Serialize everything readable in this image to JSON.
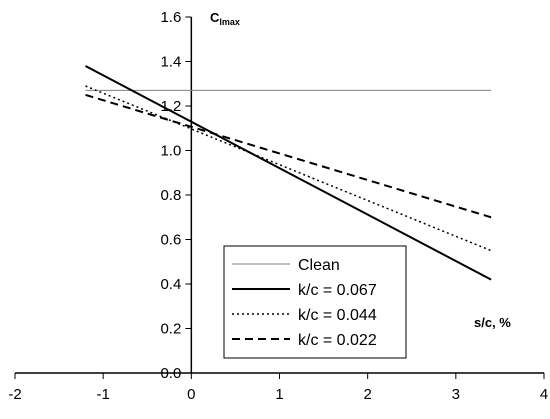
{
  "chart_data": {
    "type": "line",
    "title": "",
    "ylabel": "C",
    "ylabel_sub": "lmax",
    "xlabel": "s/c, %",
    "xlim": [
      -2,
      4
    ],
    "ylim": [
      0.0,
      1.6
    ],
    "xticks": [
      "-2",
      "-1",
      "0",
      "1",
      "2",
      "3",
      "4"
    ],
    "yticks": [
      "0.0",
      "0.2",
      "0.4",
      "0.6",
      "0.8",
      "1.0",
      "1.2",
      "1.4",
      "1.6"
    ],
    "grid": false,
    "legend_position": "bottom-center",
    "series": [
      {
        "name": "Clean",
        "style": "thin",
        "color": "#808080",
        "x": [
          -1.2,
          3.4
        ],
        "y": [
          1.27,
          1.27
        ]
      },
      {
        "name": "k/c = 0.067",
        "style": "solid",
        "color": "#000000",
        "x": [
          -1.2,
          3.4
        ],
        "y": [
          1.38,
          0.42
        ]
      },
      {
        "name": "k/c = 0.044",
        "style": "dotted",
        "color": "#000000",
        "x": [
          -1.2,
          3.4
        ],
        "y": [
          1.29,
          0.55
        ]
      },
      {
        "name": "k/c = 0.022",
        "style": "dashed",
        "color": "#000000",
        "x": [
          -1.2,
          3.4
        ],
        "y": [
          1.25,
          0.7
        ]
      }
    ]
  }
}
